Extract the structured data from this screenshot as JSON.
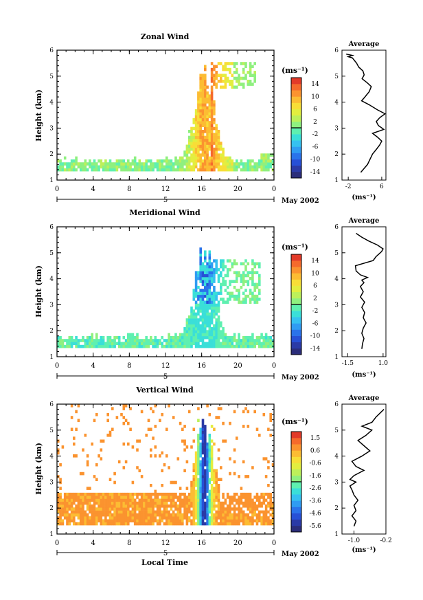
{
  "figure": {
    "xlabel_bottom": "Local Time",
    "date_label": "May 2002",
    "day_label": "5",
    "panel_height_label": "Height (km)",
    "unit_label": "(ms⁻¹)"
  },
  "chart_data": [
    {
      "type": "heatmap",
      "title": "Zonal Wind",
      "xlabel": "",
      "ylabel": "Height (km)",
      "x_ticks": [
        "0",
        "4",
        "8",
        "12",
        "16",
        "20",
        "0"
      ],
      "xlim": [
        0,
        24
      ],
      "y_ticks": [
        "1",
        "2",
        "3",
        "4",
        "5",
        "6"
      ],
      "ylim": [
        1,
        6
      ],
      "colorbar": {
        "label": "(ms⁻¹)",
        "ticks": [
          "14",
          "10",
          "6",
          "2",
          "-2",
          "-6",
          "-10",
          "-14"
        ],
        "range": [
          -16,
          16
        ]
      },
      "average_profile": {
        "title": "Average",
        "xlabel": "(ms⁻¹)",
        "x_ticks": [
          "-2",
          "6"
        ],
        "xlim": [
          -3.5,
          7
        ],
        "x": [
          1.0,
          1.8,
          2.6,
          3.2,
          3.8,
          4.8,
          5.5,
          6.0,
          5.0,
          3.8,
          6.5,
          5.2,
          4.7,
          5.5,
          6.8,
          5.0,
          3.0,
          1.2,
          2.0,
          3.0,
          3.5,
          2.5,
          1.3,
          1.8,
          1.5,
          0.5,
          0.0,
          -0.5,
          -1.0,
          -2.0,
          -1.0,
          -2.5
        ],
        "y": [
          1.3,
          1.45,
          1.6,
          1.8,
          2.0,
          2.2,
          2.35,
          2.5,
          2.65,
          2.8,
          2.95,
          3.1,
          3.25,
          3.4,
          3.55,
          3.7,
          3.9,
          4.05,
          4.2,
          4.4,
          4.6,
          4.75,
          4.9,
          5.05,
          5.2,
          5.35,
          5.5,
          5.6,
          5.7,
          5.75,
          5.8,
          5.85
        ]
      }
    },
    {
      "type": "heatmap",
      "title": "Meridional Wind",
      "xlabel": "",
      "ylabel": "Height (km)",
      "x_ticks": [
        "0",
        "4",
        "8",
        "12",
        "16",
        "20",
        "0"
      ],
      "xlim": [
        0,
        24
      ],
      "y_ticks": [
        "1",
        "2",
        "3",
        "4",
        "5",
        "6"
      ],
      "ylim": [
        1,
        6
      ],
      "colorbar": {
        "label": "(ms⁻¹)",
        "ticks": [
          "14",
          "10",
          "6",
          "2",
          "-2",
          "-6",
          "-10",
          "-14"
        ],
        "range": [
          -16,
          16
        ]
      },
      "average_profile": {
        "title": "Average",
        "xlabel": "(ms⁻¹)",
        "x_ticks": [
          "-1.5",
          "1.0"
        ],
        "xlim": [
          -1.9,
          1.2
        ],
        "x": [
          -0.5,
          -0.45,
          -0.35,
          -0.5,
          -0.4,
          -0.2,
          -0.4,
          -0.3,
          -0.5,
          -0.3,
          -0.6,
          -0.4,
          -0.6,
          -0.35,
          -0.5,
          -0.1,
          -0.6,
          -0.9,
          -0.95,
          0.3,
          0.5,
          0.7,
          0.9,
          1.0,
          0.6,
          0.0,
          -0.5,
          -0.9
        ],
        "y": [
          1.3,
          1.5,
          1.7,
          1.9,
          2.1,
          2.3,
          2.5,
          2.7,
          2.9,
          3.1,
          3.3,
          3.5,
          3.7,
          3.85,
          3.95,
          4.05,
          4.15,
          4.3,
          4.5,
          4.7,
          4.85,
          4.95,
          5.05,
          5.15,
          5.3,
          5.45,
          5.6,
          5.75
        ]
      }
    },
    {
      "type": "heatmap",
      "title": "Vertical Wind",
      "xlabel": "Local Time",
      "ylabel": "Height (km)",
      "x_ticks": [
        "0",
        "4",
        "8",
        "12",
        "16",
        "20",
        "0"
      ],
      "xlim": [
        0,
        24
      ],
      "y_ticks": [
        "1",
        "2",
        "3",
        "4",
        "5",
        "6"
      ],
      "ylim": [
        1,
        6
      ],
      "colorbar": {
        "label": "(ms⁻¹)",
        "ticks": [
          "1.5",
          "0.6",
          "-0.6",
          "-1.6",
          "-2.6",
          "-3.6",
          "-4.6",
          "-5.6"
        ],
        "range": [
          -6.1,
          2.0
        ]
      },
      "average_profile": {
        "title": "Average",
        "xlabel": "(ms⁻¹)",
        "x_ticks": [
          "-1.0",
          "-0.2"
        ],
        "xlim": [
          -1.3,
          -0.2
        ],
        "x": [
          -1.0,
          -0.95,
          -1.05,
          -0.95,
          -1.0,
          -0.9,
          -1.0,
          -1.05,
          -1.1,
          -0.95,
          -1.1,
          -1.0,
          -0.75,
          -0.95,
          -1.05,
          -0.8,
          -0.6,
          -0.75,
          -0.9,
          -0.7,
          -0.55,
          -0.8,
          -0.55,
          -0.45,
          -0.35,
          -0.25
        ],
        "y": [
          1.3,
          1.5,
          1.7,
          1.9,
          2.1,
          2.3,
          2.5,
          2.7,
          2.85,
          3.0,
          3.1,
          3.25,
          3.45,
          3.6,
          3.8,
          4.0,
          4.2,
          4.4,
          4.6,
          4.8,
          5.0,
          5.15,
          5.3,
          5.5,
          5.65,
          5.8
        ]
      }
    }
  ]
}
